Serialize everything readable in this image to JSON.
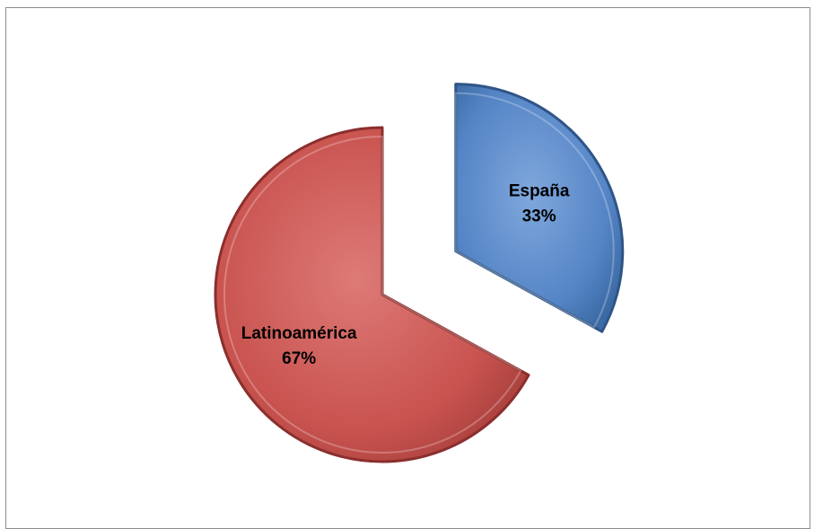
{
  "chart_data": {
    "type": "pie",
    "style": "exploded-3d-bevel",
    "slices": [
      {
        "label": "España",
        "percent_label": "33%",
        "value": 33,
        "color": "#4f81bd",
        "exploded": true
      },
      {
        "label": "Latinoamérica",
        "percent_label": "67%",
        "value": 67,
        "color": "#c0504d",
        "exploded": false
      }
    ]
  }
}
